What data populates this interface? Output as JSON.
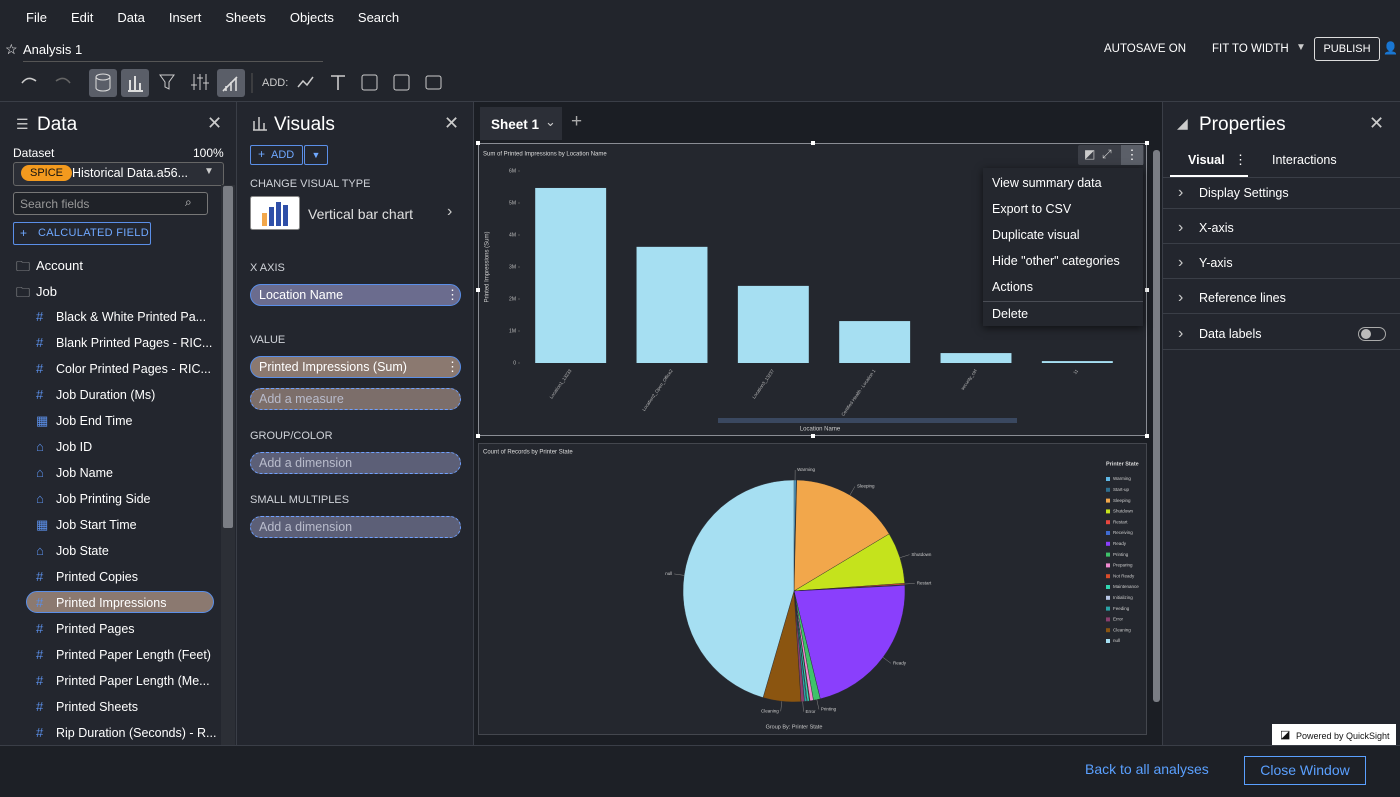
{
  "menu": [
    "File",
    "Edit",
    "Data",
    "Insert",
    "Sheets",
    "Objects",
    "Search"
  ],
  "header": {
    "title": "Analysis 1",
    "autosave": "AUTOSAVE ON",
    "fit": "FIT TO WIDTH",
    "publish": "PUBLISH",
    "add_label": "ADD:"
  },
  "data_panel": {
    "title": "Data",
    "dataset_label": "Dataset",
    "dataset_percent": "100%",
    "spice": "SPICE",
    "dataset": "Historical Data.a56...",
    "search_placeholder": "Search fields",
    "calculated_field": "CALCULATED FIELD",
    "folders": [
      "Account",
      "Job"
    ],
    "fields": [
      {
        "name": "Black & White Printed Pa...",
        "kind": "number"
      },
      {
        "name": "Blank Printed Pages - RIC...",
        "kind": "number"
      },
      {
        "name": "Color Printed Pages - RIC...",
        "kind": "number"
      },
      {
        "name": "Job Duration (Ms)",
        "kind": "number"
      },
      {
        "name": "Job End Time",
        "kind": "date"
      },
      {
        "name": "Job ID",
        "kind": "string"
      },
      {
        "name": "Job Name",
        "kind": "string"
      },
      {
        "name": "Job Printing Side",
        "kind": "string"
      },
      {
        "name": "Job Start Time",
        "kind": "date"
      },
      {
        "name": "Job State",
        "kind": "string"
      },
      {
        "name": "Printed Copies",
        "kind": "number"
      },
      {
        "name": "Printed Impressions",
        "kind": "number"
      },
      {
        "name": "Printed Pages",
        "kind": "number"
      },
      {
        "name": "Printed Paper Length (Feet)",
        "kind": "number"
      },
      {
        "name": "Printed Paper Length (Me...",
        "kind": "number"
      },
      {
        "name": "Printed Sheets",
        "kind": "number"
      },
      {
        "name": "Rip Duration (Seconds) - R...",
        "kind": "number"
      }
    ],
    "selected_field": 11
  },
  "visuals_panel": {
    "title": "Visuals",
    "add": "ADD",
    "change_type": "CHANGE VISUAL TYPE",
    "visual_type": "Vertical bar chart",
    "x_axis": "X AXIS",
    "x_field": "Location Name",
    "value": "VALUE",
    "value_field": "Printed Impressions (Sum)",
    "add_measure": "Add a measure",
    "group_color": "GROUP/COLOR",
    "add_dimension_group": "Add a dimension",
    "small_multiples": "SMALL MULTIPLES",
    "add_dimension_small": "Add a dimension"
  },
  "sheet_tab": "Sheet 1",
  "context_menu": [
    "View summary data",
    "Export to CSV",
    "Duplicate visual",
    "Hide \"other\" categories",
    "Actions",
    "Delete"
  ],
  "properties": {
    "title": "Properties",
    "tabs": [
      "Visual",
      "Interactions"
    ],
    "sections": [
      "Display Settings",
      "X-axis",
      "Y-axis",
      "Reference lines",
      "Data labels"
    ]
  },
  "footer": {
    "powered": "Powered by QuickSight",
    "back": "Back to all analyses",
    "close": "Close Window"
  },
  "chart_data": [
    {
      "type": "bar",
      "title": "Sum of Printed Impressions by Location Name",
      "x_label": "Location Name",
      "y_label": "Printed Impressions (Sum)",
      "categories": [
        "Location1_13233",
        "Location2_Open_Office2",
        "Location3_13237",
        "Certified Health - Location 1",
        "security_ctrl",
        "11"
      ],
      "values": [
        5470000,
        3630000,
        2410000,
        1310000,
        310000,
        60000
      ],
      "color": "#a6dff2",
      "ylim": [
        0,
        6000000
      ],
      "yticks": [
        0,
        {
          "value": 1000000,
          "label": "1M"
        },
        {
          "value": 2000000,
          "label": "2M"
        },
        {
          "value": 3000000,
          "label": "3M"
        },
        {
          "value": 4000000,
          "label": "4M"
        },
        {
          "value": 5000000,
          "label": "5M"
        },
        {
          "value": 6000000,
          "label": "6M"
        }
      ],
      "grid": false
    },
    {
      "type": "pie",
      "title": "Count of Records by Printer State",
      "legend_title": "Printer State",
      "x_label": "Group By: Printer State",
      "categories": [
        "Warming",
        "Start-up",
        "Sleeping",
        "Shutdown",
        "Restart",
        "Receiving",
        "Ready",
        "Printing",
        "Preparing",
        "Not Ready",
        "Maintenance",
        "Initializing",
        "Feeding",
        "Error",
        "Cleaning",
        "null"
      ],
      "values": [
        0.3,
        0.1,
        16,
        7.5,
        0.2,
        0.1,
        22,
        1,
        0.5,
        0.1,
        0.3,
        0.1,
        0.3,
        0.5,
        5.5,
        45.5
      ],
      "colors": [
        "#5fb8e6",
        "#2f6f8f",
        "#f2a74b",
        "#c5e31c",
        "#e8473f",
        "#3f6bd0",
        "#8a3ffc",
        "#3fc26a",
        "#f08bd0",
        "#d94c2a",
        "#32d6b0",
        "#b8c7e6",
        "#2aa4a8",
        "#8a3f6e",
        "#8b5510",
        "#a6dff2"
      ],
      "slice_labels": [
        "Warming",
        null,
        "Sleeping",
        "Shutdown",
        "Restart",
        null,
        "Ready",
        "Printing",
        null,
        null,
        null,
        null,
        null,
        "Error",
        "Cleaning",
        "null"
      ],
      "legend": "right"
    }
  ]
}
